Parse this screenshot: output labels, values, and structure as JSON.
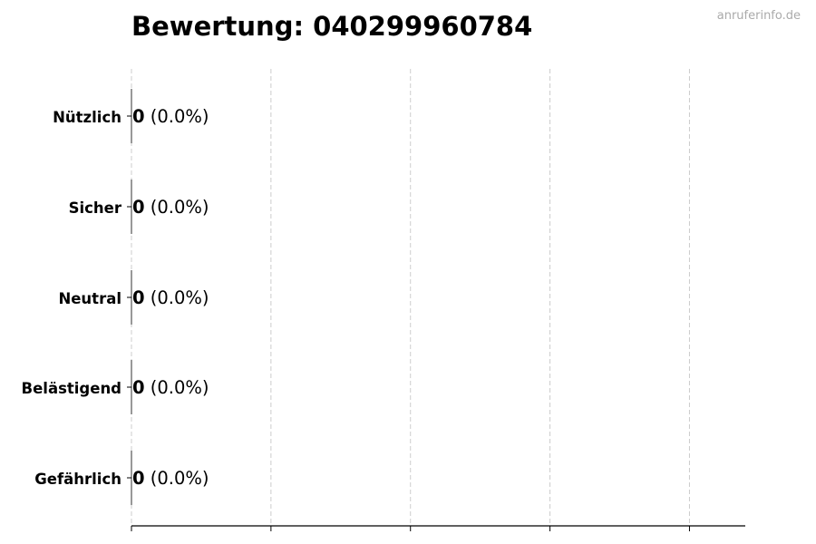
{
  "chart_data": {
    "type": "bar",
    "orientation": "horizontal",
    "title": "Bewertung: 040299960784",
    "categories": [
      "Nützlich",
      "Sicher",
      "Neutral",
      "Belästigend",
      "Gefährlich"
    ],
    "values": [
      0,
      0,
      0,
      0,
      0
    ],
    "value_labels": [
      {
        "count": "0",
        "percent": "(0.0%)"
      },
      {
        "count": "0",
        "percent": "(0.0%)"
      },
      {
        "count": "0",
        "percent": "(0.0%)"
      },
      {
        "count": "0",
        "percent": "(0.0%)"
      },
      {
        "count": "0",
        "percent": "(0.0%)"
      }
    ],
    "xlabel": "",
    "ylabel": "",
    "xlim": [
      0,
      4.4
    ],
    "xticks": [
      0,
      1,
      2,
      3,
      4
    ],
    "xtick_labels_shown": false,
    "grid": "x-dashed",
    "colors": {
      "bar_edge": "#333333",
      "grid": "#cccccc",
      "axis": "#000000"
    }
  },
  "watermark": "anruferinfo.de"
}
